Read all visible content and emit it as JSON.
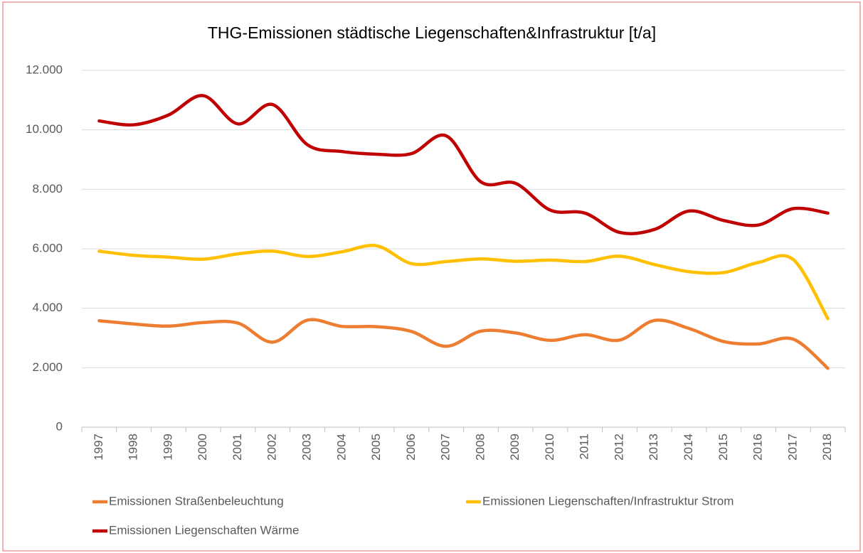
{
  "chart_data": {
    "type": "line",
    "title": "THG-Emissionen städtische Liegenschaften&Infrastruktur [t/a]",
    "categories": [
      "1997",
      "1998",
      "1999",
      "2000",
      "2001",
      "2002",
      "2003",
      "2004",
      "2005",
      "2006",
      "2007",
      "2008",
      "2009",
      "2010",
      "2011",
      "2012",
      "2013",
      "2014",
      "2015",
      "2016",
      "2017",
      "2018"
    ],
    "series": [
      {
        "name": "Emissionen Straßenbeleuchtung",
        "color": "#ed7d31",
        "values": [
          3580,
          3470,
          3400,
          3520,
          3500,
          2860,
          3600,
          3390,
          3380,
          3220,
          2720,
          3230,
          3170,
          2920,
          3110,
          2930,
          3590,
          3320,
          2880,
          2800,
          2960,
          1980
        ]
      },
      {
        "name": "Emissionen Liegenschaften/Infrastruktur Strom",
        "color": "#ffc000",
        "values": [
          5920,
          5780,
          5720,
          5650,
          5830,
          5920,
          5740,
          5900,
          6100,
          5500,
          5570,
          5660,
          5580,
          5620,
          5570,
          5750,
          5470,
          5230,
          5200,
          5540,
          5640,
          3650
        ]
      },
      {
        "name": "Emissionen Liegenschaften Wärme",
        "color": "#c00000",
        "values": [
          10300,
          10170,
          10500,
          11150,
          10200,
          10850,
          9500,
          9270,
          9180,
          9200,
          9800,
          8250,
          8200,
          7300,
          7200,
          6550,
          6650,
          7270,
          6950,
          6800,
          7350,
          7200
        ]
      }
    ],
    "ylim": [
      0,
      12000
    ],
    "yticks": [
      0,
      {
        "value": 2000,
        "label": "2.000"
      },
      {
        "value": 4000,
        "label": "4.000"
      },
      {
        "value": 6000,
        "label": "6.000"
      },
      {
        "value": 8000,
        "label": "8.000"
      },
      {
        "value": 10000,
        "label": "10.000"
      },
      {
        "value": 12000,
        "label": "12.000"
      }
    ],
    "grid": true,
    "legend": "bottom",
    "smooth": true
  }
}
